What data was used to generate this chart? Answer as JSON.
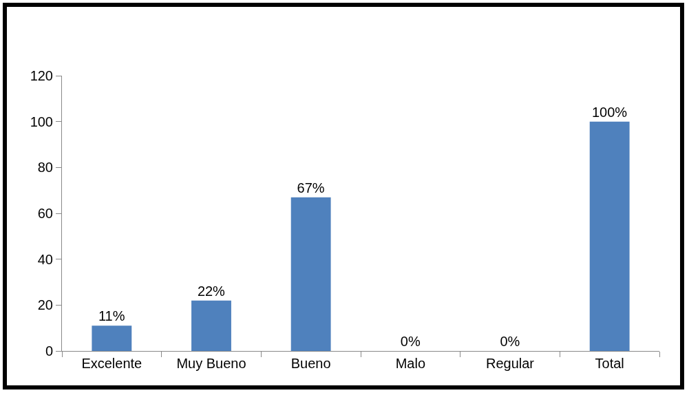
{
  "chart_data": {
    "type": "bar",
    "categories": [
      "Excelente",
      "Muy Bueno",
      "Bueno",
      "Malo",
      "Regular",
      "Total"
    ],
    "values": [
      11,
      22,
      67,
      0,
      0,
      100
    ],
    "value_labels": [
      "11%",
      "22%",
      "67%",
      "0%",
      "0%",
      "100%"
    ],
    "color": "#4f81bd",
    "ylim": [
      0,
      120
    ],
    "yticks": [
      0,
      20,
      40,
      60,
      80,
      100,
      120
    ],
    "grid": false,
    "legend": false
  }
}
